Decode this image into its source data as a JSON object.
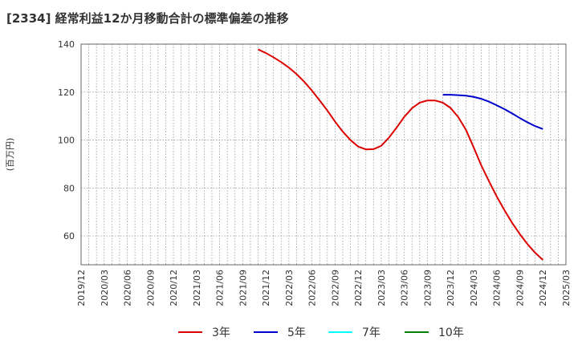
{
  "chart_data": {
    "type": "line",
    "title": "[2334]  経常利益12か月移動合計の標準偏差の推移",
    "xlabel": "",
    "ylabel": "(百万円)",
    "ylim": [
      48,
      140
    ],
    "yticks": [
      60,
      80,
      100,
      120,
      140
    ],
    "x_categories": [
      "2019/12",
      "2020/03",
      "2020/06",
      "2020/09",
      "2020/12",
      "2021/03",
      "2021/06",
      "2021/09",
      "2021/12",
      "2022/03",
      "2022/06",
      "2022/09",
      "2022/12",
      "2023/03",
      "2023/06",
      "2023/09",
      "2023/12",
      "2024/03",
      "2024/06",
      "2024/09",
      "2024/12",
      "2025/03"
    ],
    "grid": true,
    "legend_position": "bottom",
    "series": [
      {
        "name": "3年",
        "color": "#dd0000",
        "x": [
          "2021/11",
          "2021/12",
          "2022/01",
          "2022/02",
          "2022/03",
          "2022/04",
          "2022/05",
          "2022/06",
          "2022/07",
          "2022/08",
          "2022/09",
          "2022/10",
          "2022/11",
          "2022/12",
          "2023/01",
          "2023/02",
          "2023/03",
          "2023/04",
          "2023/05",
          "2023/06",
          "2023/07",
          "2023/08",
          "2023/09",
          "2023/10",
          "2023/11",
          "2023/12",
          "2024/01",
          "2024/02",
          "2024/03",
          "2024/04",
          "2024/05",
          "2024/06",
          "2024/07",
          "2024/08",
          "2024/09",
          "2024/10",
          "2024/11",
          "2024/12"
        ],
        "values": [
          137.8,
          136.3,
          134.5,
          132.5,
          130.2,
          127.5,
          124.3,
          120.6,
          116.5,
          112.3,
          107.7,
          103.5,
          100.0,
          97.3,
          96.1,
          96.2,
          97.6,
          101.0,
          105.2,
          109.7,
          113.3,
          115.6,
          116.5,
          116.5,
          115.6,
          113.4,
          109.6,
          104.3,
          97.0,
          89.4,
          82.8,
          76.5,
          70.8,
          65.5,
          60.8,
          56.6,
          53.0,
          50.0
        ]
      },
      {
        "name": "5年",
        "color": "#0000cc",
        "x": [
          "2023/11",
          "2023/12",
          "2024/01",
          "2024/02",
          "2024/03",
          "2024/04",
          "2024/05",
          "2024/06",
          "2024/07",
          "2024/08",
          "2024/09",
          "2024/10",
          "2024/11",
          "2024/12"
        ],
        "values": [
          118.9,
          118.9,
          118.7,
          118.5,
          118.0,
          117.2,
          116.0,
          114.5,
          112.9,
          111.1,
          109.2,
          107.4,
          105.8,
          104.6
        ]
      },
      {
        "name": "7年",
        "color": "#00ffff",
        "x": [],
        "values": []
      },
      {
        "name": "10年",
        "color": "#008000",
        "x": [],
        "values": []
      }
    ]
  }
}
